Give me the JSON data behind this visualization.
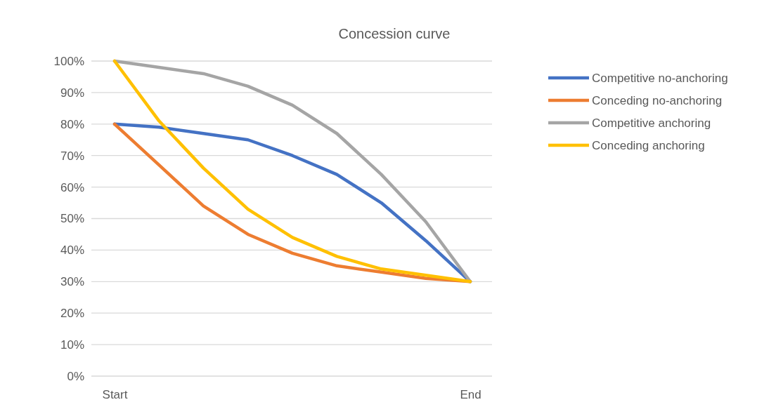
{
  "chart_data": {
    "type": "line",
    "title": "Concession curve",
    "categories": [
      "Start",
      null,
      null,
      null,
      null,
      null,
      null,
      null,
      "End"
    ],
    "series": [
      {
        "name": "Competitive no-anchoring",
        "color": "#4472c4",
        "values": [
          80,
          79,
          77,
          75,
          70,
          64,
          55,
          43,
          30
        ]
      },
      {
        "name": "Conceding no-anchoring",
        "color": "#ed7d31",
        "values": [
          80,
          67,
          54,
          45,
          39,
          35,
          33,
          31,
          30
        ]
      },
      {
        "name": "Competitive anchoring",
        "color": "#a5a5a5",
        "values": [
          100,
          98,
          96,
          92,
          86,
          77,
          64,
          49,
          30
        ]
      },
      {
        "name": "Conceding anchoring",
        "color": "#ffc000",
        "values": [
          100,
          81,
          66,
          53,
          44,
          38,
          34,
          32,
          30
        ]
      }
    ],
    "ylim": [
      0,
      100
    ],
    "yticks": [
      {
        "value": 0,
        "label": "0%"
      },
      {
        "value": 10,
        "label": "10%"
      },
      {
        "value": 20,
        "label": "20%"
      },
      {
        "value": 30,
        "label": "30%"
      },
      {
        "value": 40,
        "label": "40%"
      },
      {
        "value": 50,
        "label": "50%"
      },
      {
        "value": 60,
        "label": "60%"
      },
      {
        "value": 70,
        "label": "70%"
      },
      {
        "value": 80,
        "label": "80%"
      },
      {
        "value": 90,
        "label": "90%"
      },
      {
        "value": 100,
        "label": "100%"
      }
    ],
    "grid": "y",
    "legend": "right",
    "marker": "none",
    "line_style": "solid"
  }
}
